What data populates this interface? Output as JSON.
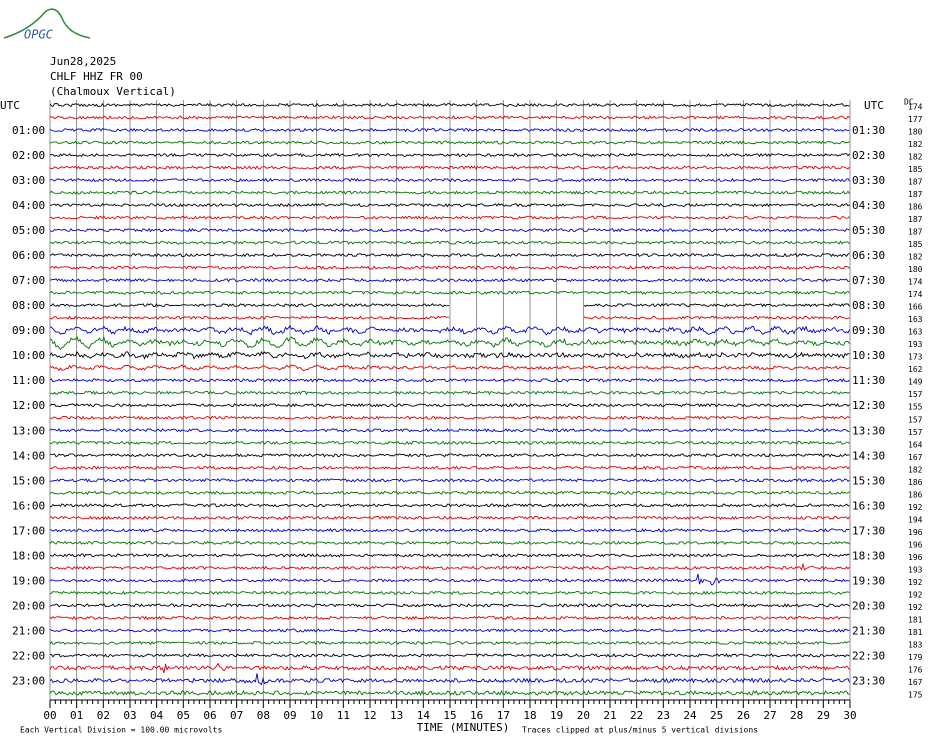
{
  "header": {
    "logo": "OPGC",
    "date": "Jun28,2025",
    "station": "CHLF HHZ FR 00",
    "location": "(Chalmoux Vertical)"
  },
  "left_axis": {
    "title": "UTC",
    "labels": [
      "01:00",
      "02:00",
      "03:00",
      "04:00",
      "05:00",
      "06:00",
      "07:00",
      "08:00",
      "09:00",
      "10:00",
      "11:00",
      "12:00",
      "13:00",
      "14:00",
      "15:00",
      "16:00",
      "17:00",
      "18:00",
      "19:00",
      "20:00",
      "21:00",
      "22:00",
      "23:00"
    ]
  },
  "right_axis": {
    "title": "UTC",
    "labels": [
      "01:30",
      "02:30",
      "03:30",
      "04:30",
      "05:30",
      "06:30",
      "07:30",
      "08:30",
      "09:30",
      "10:30",
      "11:30",
      "12:30",
      "13:30",
      "14:30",
      "15:30",
      "16:30",
      "17:30",
      "18:30",
      "19:30",
      "20:30",
      "21:30",
      "22:30",
      "23:30"
    ]
  },
  "dc": {
    "title": "DC",
    "values": [
      "174",
      "177",
      "180",
      "182",
      "182",
      "185",
      "187",
      "187",
      "186",
      "187",
      "187",
      "185",
      "182",
      "180",
      "174",
      "174",
      "166",
      "163",
      "163",
      "193",
      "173",
      "162",
      "149",
      "157",
      "155",
      "157",
      "157",
      "164",
      "167",
      "182",
      "186",
      "186",
      "192",
      "194",
      "196",
      "196",
      "196",
      "193",
      "192",
      "192",
      "192",
      "181",
      "181",
      "183",
      "179",
      "176",
      "167",
      "175"
    ]
  },
  "x_axis": {
    "title": "TIME (MINUTES)",
    "ticks": [
      "00",
      "01",
      "02",
      "03",
      "04",
      "05",
      "06",
      "07",
      "08",
      "09",
      "10",
      "11",
      "12",
      "13",
      "14",
      "15",
      "16",
      "17",
      "18",
      "19",
      "20",
      "21",
      "22",
      "23",
      "24",
      "25",
      "26",
      "27",
      "28",
      "29",
      "30"
    ]
  },
  "footer": {
    "scale": "Each Vertical Division =  100.00 microvolts",
    "clip": "Traces clipped at plus/minus 5 vertical divisions"
  }
}
